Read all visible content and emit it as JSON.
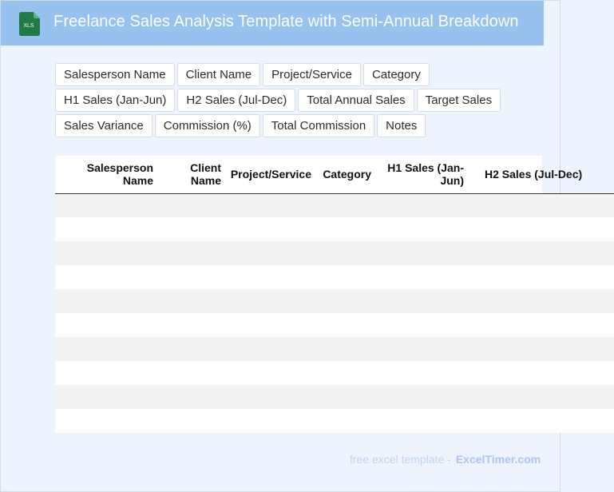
{
  "header": {
    "title": "Freelance Sales Analysis Template with Semi-Annual Breakdown",
    "icon_text": "XLS"
  },
  "chips": [
    "Salesperson Name",
    "Client Name",
    "Project/Service",
    "Category",
    "H1 Sales (Jan-Jun)",
    "H2 Sales (Jul-Dec)",
    "Total Annual Sales",
    "Target Sales",
    "Sales Variance",
    "Commission (%)",
    "Total Commission",
    "Notes"
  ],
  "table": {
    "headers": [
      "Salesperson Name",
      "Client Name",
      "Project/Service",
      "Category",
      "H1 Sales (Jan-Jun)",
      "H2 Sales (Jul-Dec)"
    ],
    "row_count": 10
  },
  "footer": {
    "prefix": "free excel template -",
    "brand": "ExcelTimer.com"
  },
  "colors": {
    "header_bg": "#97c1ef",
    "page_bg": "#eef4fd",
    "icon_green": "#1f7a46"
  }
}
